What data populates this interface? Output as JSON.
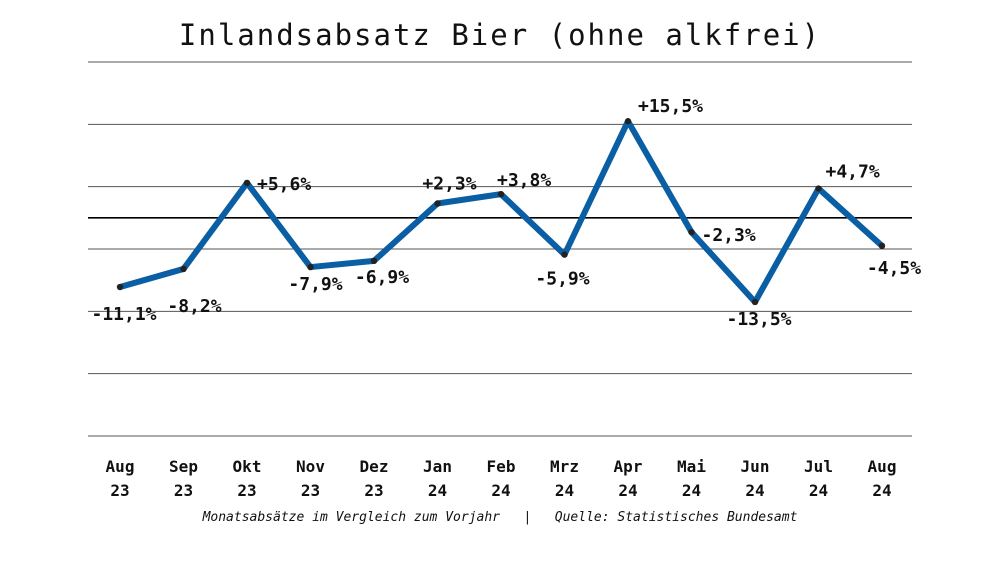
{
  "title": "Inlandsabsatz Bier (ohne alkfrei)",
  "footer": {
    "caption": "Monatsabsätze im Vergleich zum Vorjahr",
    "separator": "|",
    "source": "Quelle: Statistisches Bundesamt"
  },
  "colors": {
    "line": "#0a5fa4",
    "marker": "#222222",
    "grid": "#555555",
    "zero_line": "#000000",
    "text": "#111111"
  },
  "chart_data": {
    "type": "line",
    "title": "Inlandsabsatz Bier (ohne alkfrei)",
    "xlabel": "",
    "ylabel": "",
    "grid": true,
    "legend": "none",
    "categories": [
      [
        "Aug",
        "23"
      ],
      [
        "Sep",
        "23"
      ],
      [
        "Okt",
        "23"
      ],
      [
        "Nov",
        "23"
      ],
      [
        "Dez",
        "23"
      ],
      [
        "Jan",
        "24"
      ],
      [
        "Feb",
        "24"
      ],
      [
        "Mrz",
        "24"
      ],
      [
        "Apr",
        "24"
      ],
      [
        "Mai",
        "24"
      ],
      [
        "Jun",
        "24"
      ],
      [
        "Jul",
        "24"
      ],
      [
        "Aug",
        "24"
      ]
    ],
    "values": [
      -11.1,
      -8.2,
      5.6,
      -7.9,
      -6.9,
      2.3,
      3.8,
      -5.9,
      15.5,
      -2.3,
      -13.5,
      4.7,
      -4.5
    ],
    "data_labels": [
      "-11,1%",
      "-8,2%",
      "+5,6%",
      "-7,9%",
      "-6,9%",
      "+2,3%",
      "+3,8%",
      "-5,9%",
      "+15,5%",
      "-2,3%",
      "-13,5%",
      "+4,7%",
      "-4,5%"
    ],
    "ylim": [
      -35,
      25
    ],
    "gridlines": [
      -35,
      -25,
      -15,
      -5,
      5,
      15,
      25
    ],
    "zero_line": 0
  }
}
